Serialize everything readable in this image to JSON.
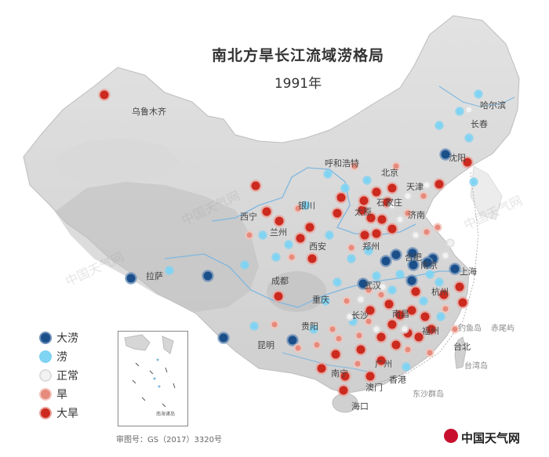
{
  "title": "南北方旱长江流域涝格局",
  "subtitle": "1991年",
  "legend": [
    {
      "key": "heavy_flood",
      "label": "大涝",
      "fill": "#1a4f8a",
      "ring": "#6c8fb8"
    },
    {
      "key": "flood",
      "label": "涝",
      "fill": "#7fd3f3",
      "ring": "#7fd3f3"
    },
    {
      "key": "normal",
      "label": "正常",
      "fill": "#f2f2f2",
      "ring": "#dddddd"
    },
    {
      "key": "drought",
      "label": "旱",
      "fill": "#e58a7c",
      "ring": "#f3c4bc"
    },
    {
      "key": "heavy_drought",
      "label": "大旱",
      "fill": "#cc2a1f",
      "ring": "#e9a49c"
    }
  ],
  "places": {
    "wulumuqi": "乌鲁木齐",
    "haerbin": "哈尔滨",
    "changchun": "长春",
    "shenyang": "沈阳",
    "huhehaote": "呼和浩特",
    "beijing": "北京",
    "tianjin": "天津",
    "shijiazhuang": "石家庄",
    "jinan": "济南",
    "taiyuan": "太原",
    "yinchuan": "银川",
    "xining": "西宁",
    "lanzhou": "兰州",
    "zhengzhou": "郑州",
    "xian": "西安",
    "nanjing": "南京",
    "shanghai": "上海",
    "hefei": "合肥",
    "lasa": "拉萨",
    "chengdu": "成都",
    "wuhan": "武汉",
    "hangzhou": "杭州",
    "chongqing": "重庆",
    "changsha": "长沙",
    "nanchang": "南昌",
    "fuzhou": "福州",
    "guiyang": "贵阳",
    "kunming": "昆明",
    "taibei": "台北",
    "diaoyudao": "钓鱼岛",
    "chiweiyu": "赤尾屿",
    "nanning": "南宁",
    "guangzhou": "广州",
    "xianggang": "香港",
    "aomen": "澳门",
    "dongsha": "东沙群岛",
    "haikou": "海口",
    "taiwan_island": "台湾岛"
  },
  "approval_number": "审图号：GS（2017）3320号",
  "brand": "中国天气网",
  "inset": {
    "label": "南海诸岛"
  }
}
